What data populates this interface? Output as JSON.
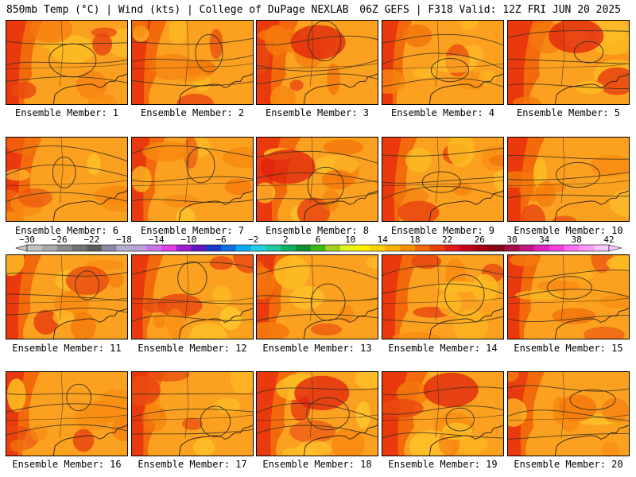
{
  "header": {
    "left": "850mb Temp (°C) | Wind (kts) | College of DuPage NEXLAB",
    "right": "06Z GEFS | F318 Valid: 12Z FRI JUN 20 2025"
  },
  "panels": [
    {
      "label": "Ensemble Member: 1",
      "hot": 0.55,
      "seed": 1
    },
    {
      "label": "Ensemble Member: 2",
      "hot": 0.5,
      "seed": 2
    },
    {
      "label": "Ensemble Member: 3",
      "hot": 0.7,
      "seed": 3
    },
    {
      "label": "Ensemble Member: 4",
      "hot": 0.35,
      "seed": 4
    },
    {
      "label": "Ensemble Member: 5",
      "hot": 0.8,
      "seed": 5
    },
    {
      "label": "Ensemble Member: 6",
      "hot": 0.5,
      "seed": 6
    },
    {
      "label": "Ensemble Member: 7",
      "hot": 0.45,
      "seed": 7
    },
    {
      "label": "Ensemble Member: 8",
      "hot": 0.75,
      "seed": 8
    },
    {
      "label": "Ensemble Member: 9",
      "hot": 0.5,
      "seed": 9
    },
    {
      "label": "Ensemble Member: 10",
      "hot": 0.55,
      "seed": 10
    },
    {
      "label": "Ensemble Member: 11",
      "hot": 0.5,
      "seed": 11
    },
    {
      "label": "Ensemble Member: 12",
      "hot": 0.4,
      "seed": 12
    },
    {
      "label": "Ensemble Member: 13",
      "hot": 0.5,
      "seed": 13
    },
    {
      "label": "Ensemble Member: 14",
      "hot": 0.55,
      "seed": 14
    },
    {
      "label": "Ensemble Member: 15",
      "hot": 0.45,
      "seed": 15
    },
    {
      "label": "Ensemble Member: 16",
      "hot": 0.45,
      "seed": 16
    },
    {
      "label": "Ensemble Member: 17",
      "hot": 0.45,
      "seed": 17
    },
    {
      "label": "Ensemble Member: 18",
      "hot": 0.65,
      "seed": 18
    },
    {
      "label": "Ensemble Member: 19",
      "hot": 0.8,
      "seed": 19
    },
    {
      "label": "Ensemble Member: 20",
      "hot": 0.55,
      "seed": 20
    }
  ],
  "colorbar": {
    "labels": [
      "−30",
      "−26",
      "−22",
      "−18",
      "−14",
      "−10",
      "−6",
      "−2",
      "2",
      "6",
      "10",
      "14",
      "18",
      "22",
      "26",
      "30",
      "34",
      "38",
      "42"
    ],
    "colors": [
      "#c2c2c2",
      "#a9a9a9",
      "#8c8c8c",
      "#747474",
      "#5c5c5c",
      "#8a8aa6",
      "#b0b0cc",
      "#b8a0d8",
      "#c878e6",
      "#e040e8",
      "#a020d0",
      "#6018c0",
      "#1838c8",
      "#1070e0",
      "#10a8f0",
      "#20d0e0",
      "#20c8a0",
      "#10b060",
      "#109030",
      "#40b818",
      "#a0d020",
      "#e0f020",
      "#fff000",
      "#ffd000",
      "#ffb000",
      "#f89000",
      "#f06800",
      "#e84000",
      "#e01818",
      "#c00018",
      "#a00010",
      "#800818",
      "#a01040",
      "#c01880",
      "#e020c0",
      "#f040e0",
      "#ff70f0",
      "#ff98f8",
      "#ffc8ff"
    ]
  }
}
